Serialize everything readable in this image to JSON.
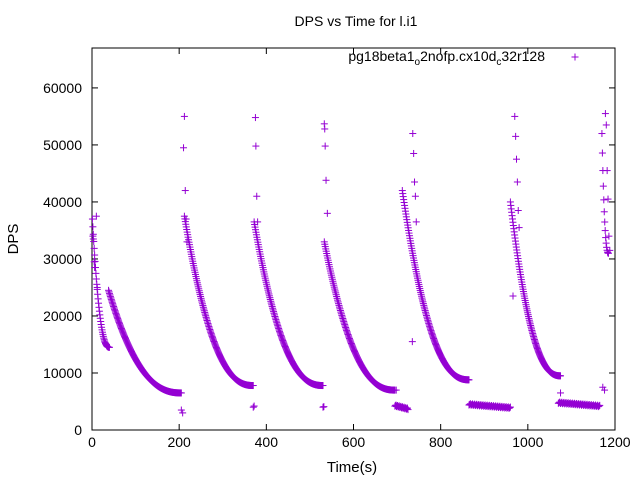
{
  "chart_data": {
    "type": "scatter",
    "title": "DPS vs Time for l.i1",
    "xlabel": "Time(s)",
    "ylabel": "DPS",
    "xlim": [
      0,
      1200
    ],
    "ylim": [
      0,
      67000
    ],
    "xticks": [
      0,
      200,
      400,
      600,
      800,
      1000,
      1200
    ],
    "yticks": [
      0,
      10000,
      20000,
      30000,
      40000,
      50000,
      60000
    ],
    "grid": false,
    "legend_position": "top-right",
    "marker": "+",
    "series": [
      {
        "name": "pg18beta1_o2nofp.cx10d_c32r128",
        "legend_parts": [
          "pg18beta1",
          "o",
          "2nofp.cx10d",
          "c",
          "32r128"
        ],
        "color": "#9400d3",
        "segments": [
          {
            "t0": 1,
            "t1": 40,
            "v0": 37000,
            "v1": 14500,
            "n": 40
          },
          {
            "t0": 38,
            "t1": 205,
            "v0": 24500,
            "v1": 6500,
            "n": 160
          },
          {
            "t0": 212,
            "t1": 370,
            "v0": 37500,
            "v1": 7800,
            "n": 150
          },
          {
            "t0": 372,
            "t1": 530,
            "v0": 36500,
            "v1": 7800,
            "n": 150
          },
          {
            "t0": 533,
            "t1": 695,
            "v0": 33000,
            "v1": 7000,
            "n": 150
          },
          {
            "t0": 712,
            "t1": 865,
            "v0": 42000,
            "v1": 8800,
            "n": 150
          },
          {
            "t0": 960,
            "t1": 1075,
            "v0": 40000,
            "v1": 9500,
            "n": 120
          },
          {
            "t0": 1170,
            "t1": 1185,
            "v0": 52000,
            "v1": 31000,
            "n": 15
          }
        ],
        "flat_segments": [
          {
            "t0": 695,
            "t1": 725,
            "v": 4000,
            "n": 25
          },
          {
            "t0": 865,
            "t1": 960,
            "v": 4200,
            "n": 60
          },
          {
            "t0": 1070,
            "t1": 1165,
            "v": 4500,
            "n": 60
          }
        ],
        "points": [
          [
            2,
            34000
          ],
          [
            3,
            33500
          ],
          [
            5,
            29500
          ],
          [
            6,
            28500
          ],
          [
            10,
            37500
          ],
          [
            12,
            25000
          ],
          [
            205,
            3500
          ],
          [
            208,
            3000
          ],
          [
            210,
            49500
          ],
          [
            212,
            55000
          ],
          [
            214,
            42000
          ],
          [
            216,
            37000
          ],
          [
            218,
            33000
          ],
          [
            370,
            4000
          ],
          [
            372,
            4200
          ],
          [
            375,
            54800
          ],
          [
            376,
            49800
          ],
          [
            378,
            41000
          ],
          [
            380,
            36500
          ],
          [
            530,
            4000
          ],
          [
            532,
            4100
          ],
          [
            533,
            53700
          ],
          [
            534,
            52800
          ],
          [
            535,
            49800
          ],
          [
            537,
            43800
          ],
          [
            540,
            38000
          ],
          [
            698,
            7000
          ],
          [
            735,
            15500
          ],
          [
            736,
            52000
          ],
          [
            738,
            48500
          ],
          [
            740,
            43500
          ],
          [
            742,
            41000
          ],
          [
            744,
            36500
          ],
          [
            966,
            23500
          ],
          [
            970,
            55000
          ],
          [
            972,
            51500
          ],
          [
            974,
            47500
          ],
          [
            976,
            43500
          ],
          [
            978,
            38500
          ],
          [
            980,
            35500
          ],
          [
            1075,
            6500
          ],
          [
            1172,
            7500
          ],
          [
            1176,
            7000
          ],
          [
            1178,
            55500
          ],
          [
            1180,
            53500
          ],
          [
            1182,
            45500
          ],
          [
            1184,
            40500
          ],
          [
            1186,
            34000
          ],
          [
            1188,
            31500
          ]
        ]
      }
    ]
  }
}
